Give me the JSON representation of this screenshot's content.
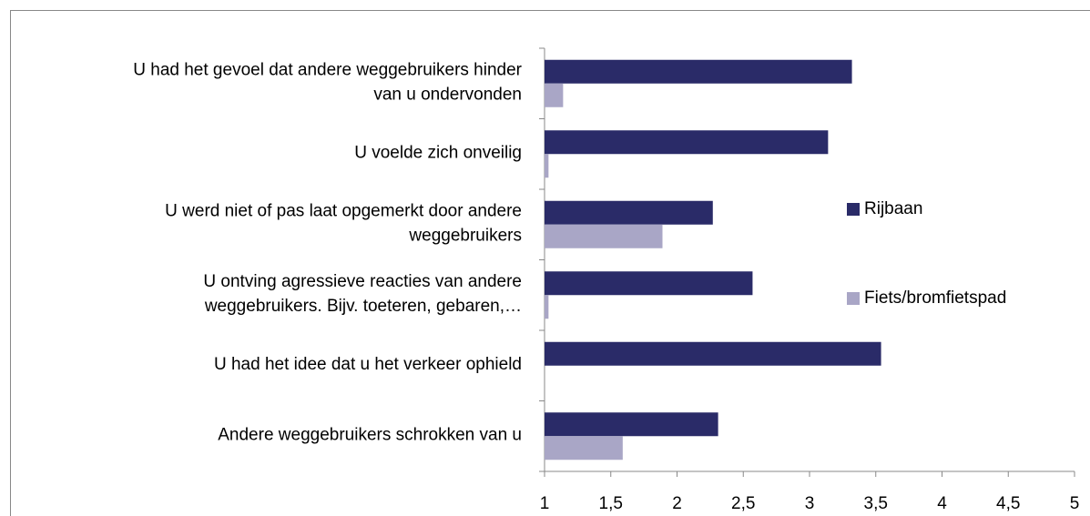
{
  "chart_data": {
    "type": "hbar",
    "categories": [
      "U had het gevoel dat andere weggebruikers hinder\nvan u ondervonden",
      "U voelde zich onveilig",
      "U werd niet of pas laat opgemerkt door andere\nweggebruikers",
      "U ontving agressieve reacties van andere\nweggebruikers. Bijv. toeteren, gebaren,…",
      "U had het idee dat u het verkeer ophield",
      "Andere weggebruikers schrokken van u"
    ],
    "series": [
      {
        "name": "Rijbaan",
        "color": "#2a2b68",
        "values": [
          3.32,
          3.14,
          2.27,
          2.57,
          3.54,
          2.31
        ]
      },
      {
        "name": "Fiets/bromfietspad",
        "color": "#a9a6c6",
        "values": [
          1.14,
          1.03,
          1.89,
          1.03,
          1.0,
          1.59
        ]
      }
    ],
    "xlim": [
      1,
      5
    ],
    "xticks": [
      1,
      {
        "value": 1.5,
        "label": "1,5"
      },
      2,
      {
        "value": 2.5,
        "label": "2,5"
      },
      3,
      {
        "value": 3.5,
        "label": "3,5"
      },
      4,
      {
        "value": 4.5,
        "label": "4,5"
      },
      5
    ],
    "legend": "right"
  }
}
